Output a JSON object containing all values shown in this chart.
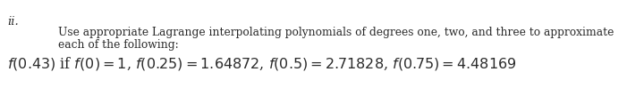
{
  "label": "ii.",
  "line1": "Use appropriate Lagrange interpolating polynomials of degrees one, two, and three to approximate",
  "line2": "each of the following:",
  "math_line": "$f(0.43)$ if $f(0) = 1$, $f(0.25) = 1.64872$, $f(0.5) = 2.71828$, $f(0.75) = 4.48169$",
  "bg_color": "#ffffff",
  "text_color": "#2b2b2b",
  "font_size_label": 9.5,
  "font_size_body": 8.8,
  "font_size_math": 11.5
}
